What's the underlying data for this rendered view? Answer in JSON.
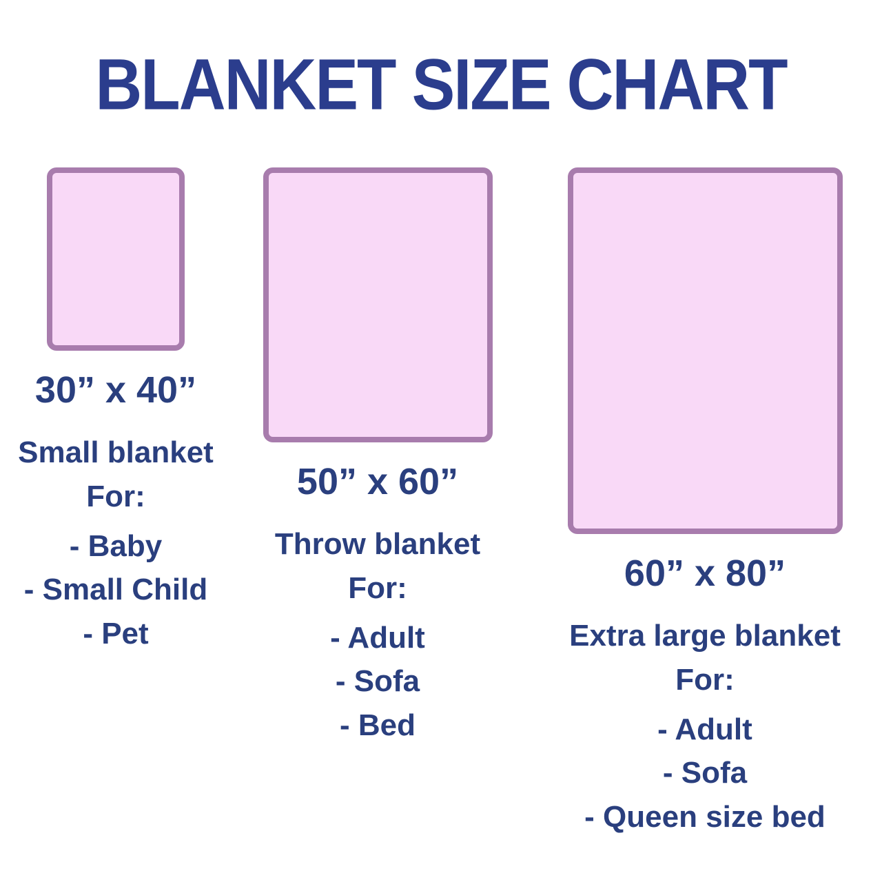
{
  "title": "BLANKET SIZE CHART",
  "colors": {
    "title_text": "#2b3d8d",
    "body_text": "#2a3f7e",
    "blanket_fill": "#f9d9f7",
    "blanket_border": "#a87cad",
    "background": "#ffffff"
  },
  "blankets": [
    {
      "size_label": "30” x 40”",
      "width_in": 30,
      "height_in": 40,
      "name": "Small blanket",
      "for_label": "For:",
      "uses": [
        "- Baby",
        "- Small Child",
        "- Pet"
      ]
    },
    {
      "size_label": "50” x 60”",
      "width_in": 50,
      "height_in": 60,
      "name": "Throw blanket",
      "for_label": "For:",
      "uses": [
        "- Adult",
        "- Sofa",
        "- Bed"
      ]
    },
    {
      "size_label": "60” x 80”",
      "width_in": 60,
      "height_in": 80,
      "name": "Extra large blanket",
      "for_label": "For:",
      "uses": [
        "- Adult",
        "- Sofa",
        "- Queen size bed"
      ]
    }
  ]
}
